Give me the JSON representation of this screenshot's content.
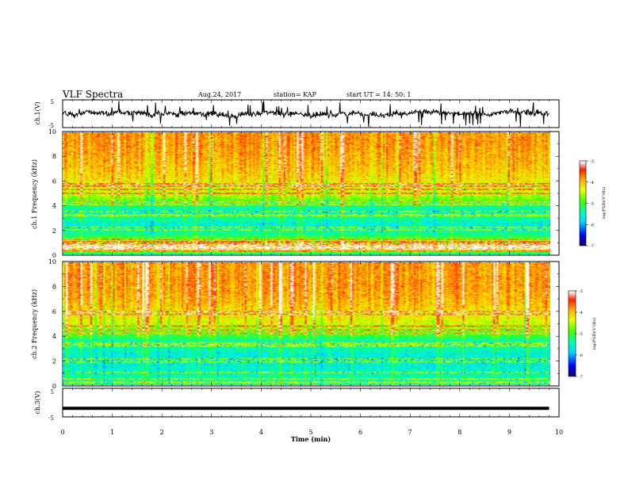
{
  "header": {
    "title": "VLF Spectra",
    "date": "Aug.24, 2017",
    "station": "station= KAP",
    "start": "start  UT =   14: 50: 1"
  },
  "colors": {
    "frame": "#000000",
    "colormap": [
      "#0a0070",
      "#0000ff",
      "#00d8ff",
      "#00ffb0",
      "#40ff00",
      "#e8ff00",
      "#ffb000",
      "#ff2000",
      "#ffb0b0",
      "#ffffff"
    ]
  },
  "chart_data": [
    {
      "type": "line",
      "name": "ch1-waveform",
      "ylabel": "ch.1(V)",
      "ylim": [
        -5,
        5
      ],
      "yticks": [
        "5",
        "-5"
      ],
      "xlim": [
        0,
        10
      ],
      "x_end": 9.8,
      "baseline": 0,
      "note_values": "noisy waveform fluctuating mostly between about -2 and +2 V"
    },
    {
      "type": "heatmap",
      "name": "ch1-spectrogram",
      "ylabel": "ch.1 Frequency  (kHz)",
      "ylim": [
        0,
        10
      ],
      "yticks": [
        "0",
        "2",
        "4",
        "6",
        "8",
        "10"
      ],
      "xlim": [
        0,
        10
      ],
      "x_end": 9.8,
      "colorbar": {
        "label": "log(PSD)(V²/Hz)",
        "range": [
          -7,
          -3
        ],
        "ticks": [
          "-3",
          "-4",
          "-5",
          "-6",
          "-7"
        ]
      },
      "profile_khz": [
        [
          0,
          -5.4
        ],
        [
          0.5,
          -3.6
        ],
        [
          1.0,
          -4.4
        ],
        [
          1.5,
          -5.2
        ],
        [
          2.0,
          -5.5
        ],
        [
          2.5,
          -5.6
        ],
        [
          3.0,
          -5.3
        ],
        [
          3.5,
          -5.6
        ],
        [
          4.0,
          -5.2
        ],
        [
          4.5,
          -4.8
        ],
        [
          5.0,
          -4.4
        ],
        [
          6.0,
          -4.2
        ],
        [
          7.0,
          -4.0
        ],
        [
          8.0,
          -3.9
        ],
        [
          9.0,
          -3.8
        ],
        [
          10.0,
          -3.8
        ]
      ],
      "lines_khz": [
        0.25,
        0.4,
        0.55,
        0.7,
        0.85,
        1.0,
        1.2,
        2.0,
        2.2,
        3.2,
        3.5,
        4.1,
        4.3,
        5.0,
        5.3,
        5.6,
        5.8
      ]
    },
    {
      "type": "heatmap",
      "name": "ch2-spectrogram",
      "ylabel": "ch.2 Frequency  (kHz)",
      "ylim": [
        0,
        10
      ],
      "yticks": [
        "0",
        "2",
        "4",
        "6",
        "8",
        "10"
      ],
      "xlim": [
        0,
        10
      ],
      "x_end": 9.8,
      "colorbar": {
        "label": "log(PSD)(V²/Hz)",
        "range": [
          -7,
          -3
        ],
        "ticks": [
          "-3",
          "-4",
          "-5",
          "-6",
          "-7"
        ]
      },
      "profile_khz": [
        [
          0,
          -5.3
        ],
        [
          0.5,
          -5.4
        ],
        [
          1.0,
          -5.5
        ],
        [
          1.5,
          -5.6
        ],
        [
          2.0,
          -5.6
        ],
        [
          2.5,
          -5.6
        ],
        [
          3.0,
          -5.4
        ],
        [
          3.5,
          -5.5
        ],
        [
          4.0,
          -5.0
        ],
        [
          4.5,
          -4.7
        ],
        [
          5.0,
          -4.4
        ],
        [
          6.0,
          -4.1
        ],
        [
          7.0,
          -3.9
        ],
        [
          8.0,
          -3.8
        ],
        [
          9.0,
          -3.8
        ],
        [
          10.0,
          -3.8
        ]
      ],
      "lines_khz": [
        0.2,
        0.5,
        1.0,
        1.9,
        2.1,
        3.2,
        3.4,
        4.2,
        4.5,
        4.8,
        5.8,
        6.0
      ]
    },
    {
      "type": "line",
      "name": "ch3-waveform",
      "ylabel": "ch.3(V)",
      "ylim": [
        -5,
        5
      ],
      "yticks": [
        "5",
        "-5"
      ],
      "xlim": [
        0,
        10
      ],
      "x_end": 9.8,
      "baseline": -2,
      "note_values": "flat trace at about -2 V"
    }
  ],
  "xaxis": {
    "label": "Time  (min)",
    "range": [
      0,
      10
    ],
    "ticks": [
      "0",
      "1",
      "2",
      "3",
      "4",
      "5",
      "6",
      "7",
      "8",
      "9",
      "10"
    ]
  }
}
